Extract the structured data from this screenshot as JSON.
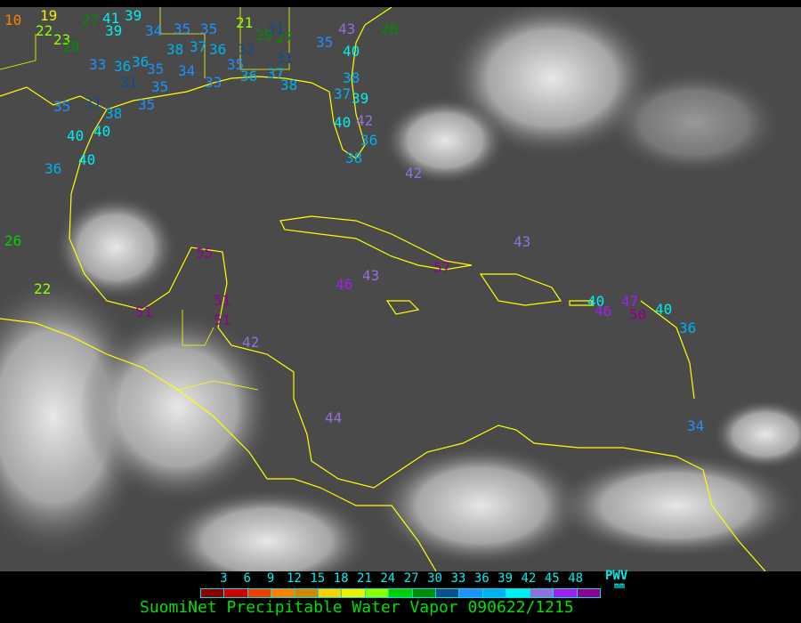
{
  "legend": {
    "ticks": [
      "3",
      "6",
      "9",
      "12",
      "15",
      "18",
      "21",
      "24",
      "27",
      "30",
      "33",
      "36",
      "39",
      "42",
      "45",
      "48"
    ],
    "colors": [
      "#8b0000",
      "#d00000",
      "#f04000",
      "#ff8000",
      "#d08800",
      "#ffd000",
      "#f0f000",
      "#90ff00",
      "#00d000",
      "#008c00",
      "#104e8b",
      "#1e90ff",
      "#00b0f0",
      "#00f0f0",
      "#9370db",
      "#a020f0",
      "#900090"
    ],
    "unit_label": "PWV",
    "unit": "mm"
  },
  "title": "SuomiNet Precipitable Water Vapor 090622/1215",
  "stations": [
    "10",
    "19",
    "22",
    "23",
    "29",
    "27",
    "41",
    "39",
    "39",
    "34",
    "35",
    "35",
    "21",
    "29",
    "27",
    "31",
    "35",
    "43",
    "28",
    "40",
    "38",
    "37",
    "36",
    "32",
    "31",
    "33",
    "36",
    "36",
    "35",
    "34",
    "31",
    "35",
    "35",
    "36",
    "37",
    "38",
    "33",
    "38",
    "37",
    "39",
    "35",
    "31",
    "38",
    "35",
    "40",
    "40",
    "40",
    "36",
    "40",
    "42",
    "36",
    "38",
    "42",
    "26",
    "22",
    "55",
    "51",
    "51",
    "51",
    "42",
    "46",
    "43",
    "57",
    "43",
    "40",
    "46",
    "47",
    "50",
    "40",
    "36",
    "44",
    "34"
  ]
}
